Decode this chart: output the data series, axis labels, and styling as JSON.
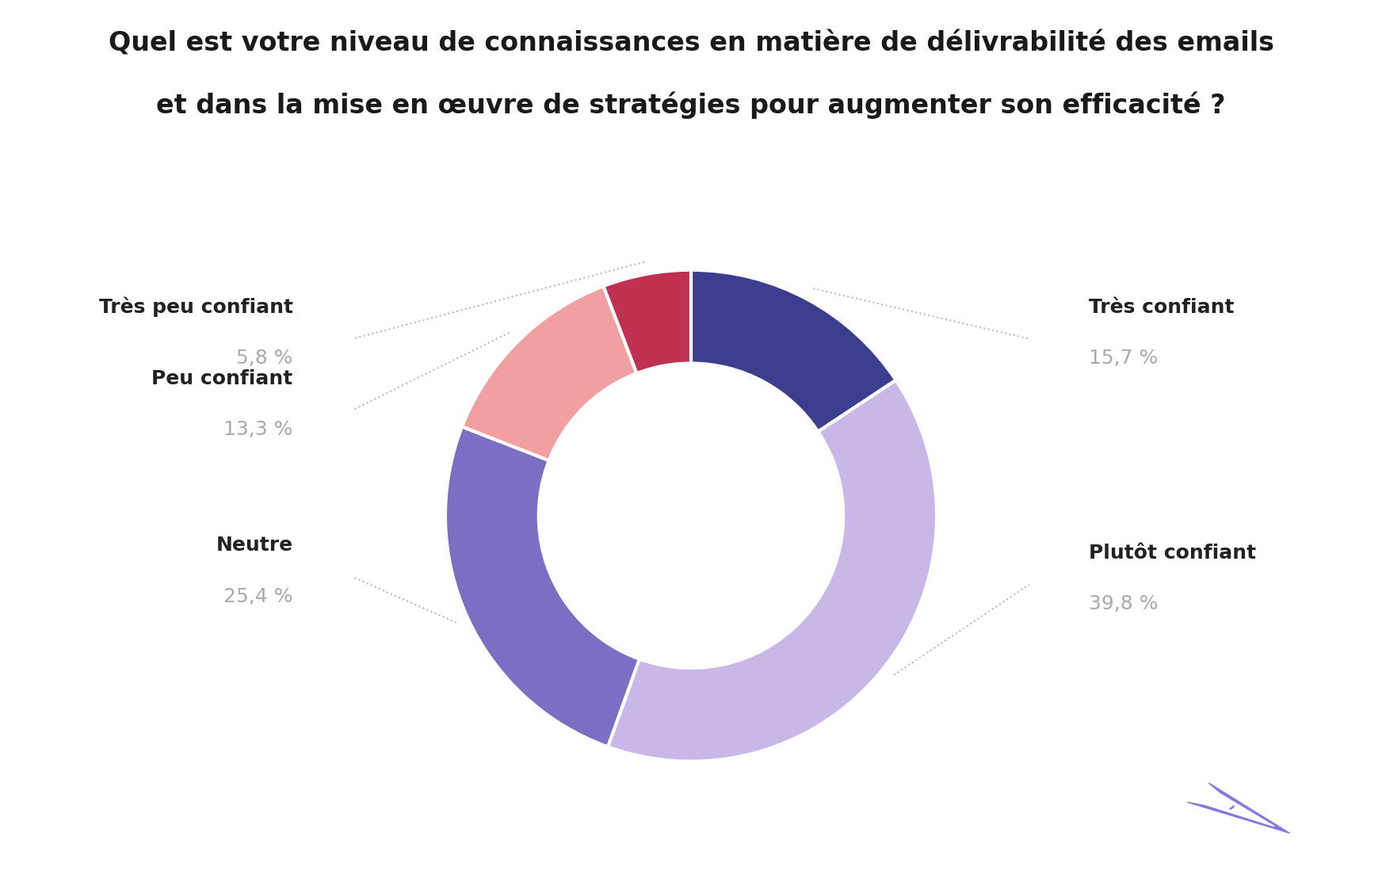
{
  "title_line1": "Quel est votre niveau de connaissances en matière de délivrabilité des emails",
  "title_line2": "et dans la mise en œuvre de stratégies pour augmenter son efficacité ?",
  "slices": [
    {
      "label": "Très confiant",
      "pct": 15.7,
      "pct_str": "15,7 %",
      "color": "#3d3d8f"
    },
    {
      "label": "Plutôt confiant",
      "pct": 39.8,
      "pct_str": "39,8 %",
      "color": "#c8b8e8"
    },
    {
      "label": "Neutre",
      "pct": 25.4,
      "pct_str": "25,4 %",
      "color": "#7b6fc4"
    },
    {
      "label": "Peu confiant",
      "pct": 13.3,
      "pct_str": "13,3 %",
      "color": "#f0a0a0"
    },
    {
      "label": "Très peu confiant",
      "pct": 5.8,
      "pct_str": "5,8 %",
      "color": "#c03050"
    }
  ],
  "label_color": "#222222",
  "pct_color": "#aaaaaa",
  "bg_color": "#ffffff",
  "title_color": "#1a1a1a",
  "title_fontsize": 24,
  "label_fontsize": 18,
  "pct_fontsize": 18,
  "donut_width": 0.38,
  "start_angle": 90,
  "logo_color": "#8877dd",
  "connector_color": "#bbbbbb"
}
